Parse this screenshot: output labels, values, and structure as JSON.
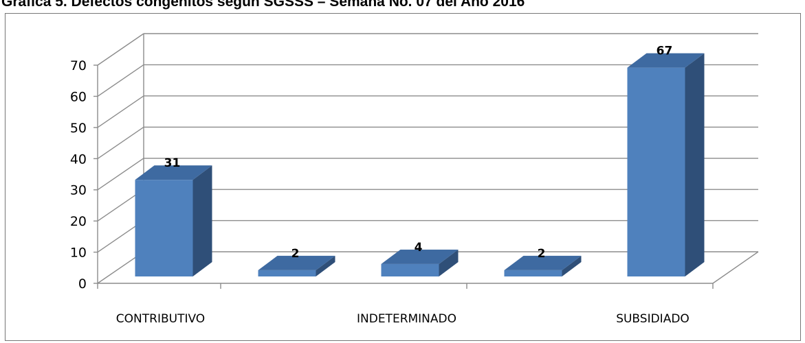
{
  "title": "Gráfica 5. Defectos congénitos según SGSSS – Semana No. 07 del Año 2016",
  "colors": {
    "bar_front": "#4f81bd",
    "bar_side": "#2f4f78",
    "bar_top": "#3e6aa1",
    "grid": "#8c8c8c",
    "frame": "#767676"
  },
  "chart_data": {
    "type": "bar",
    "style": "3d-column",
    "categories": [
      "CONTRIBUTIVO",
      "",
      "INDETERMINADO",
      "",
      "SUBSIDIADO"
    ],
    "visible_tick_labels": [
      "CONTRIBUTIVO",
      "INDETERMINADO",
      "SUBSIDIADO"
    ],
    "values": [
      31,
      2,
      4,
      2,
      67
    ],
    "data_labels": [
      "31",
      "2",
      "4",
      "2",
      "67"
    ],
    "ylim": [
      0,
      70
    ],
    "yticks": [
      0,
      10,
      20,
      30,
      40,
      50,
      60,
      70
    ],
    "xlabel": "",
    "ylabel": "",
    "grid": true,
    "legend": "none"
  }
}
